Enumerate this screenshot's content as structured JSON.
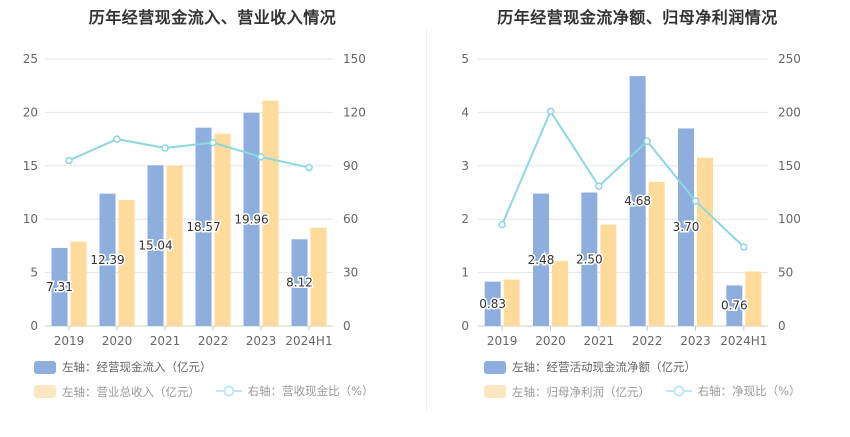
{
  "charts": [
    {
      "title": "历年经营现金流入、营业收入情况",
      "legend": {
        "bar1": "左轴：经营现金流入（亿元）",
        "bar2": "左轴：营业总收入（亿元）",
        "line": "右轴：营收现金比（%）"
      },
      "colors": {
        "bar1": "#8eaedd",
        "bar2": "#fedb9b",
        "line": "#8dd8e0",
        "grid": "#e6e6e6",
        "axisText": "#666666"
      }
    },
    {
      "title": "历年经营现金流净额、归母净利润情况",
      "legend": {
        "bar1": "左轴：经营活动现金流净额（亿元）",
        "bar2": "左轴：归母净利润（亿元）",
        "line": "右轴：净现比（%）"
      },
      "colors": {
        "bar1": "#8eaedd",
        "bar2": "#fedb9b",
        "line": "#8dd8e0",
        "grid": "#e6e6e6",
        "axisText": "#666666"
      }
    }
  ],
  "chart_data": [
    {
      "type": "bar",
      "title": "历年经营现金流入、营业收入情况",
      "categories": [
        "2019",
        "2020",
        "2021",
        "2022",
        "2023",
        "2024H1"
      ],
      "left_axis": {
        "ylim": [
          0,
          25
        ],
        "ticks": [
          0,
          5,
          10,
          15,
          20,
          25
        ]
      },
      "right_axis": {
        "ylim": [
          0,
          150
        ],
        "ticks": [
          0,
          30,
          60,
          90,
          120,
          150
        ]
      },
      "series": [
        {
          "name": "经营现金流入",
          "axis": "left",
          "kind": "bar",
          "values": [
            7.31,
            12.39,
            15.04,
            18.57,
            19.96,
            8.12
          ],
          "labels": [
            "7.31",
            "12.39",
            "15.04",
            "18.57",
            "19.96",
            "8.12"
          ]
        },
        {
          "name": "营业总收入",
          "axis": "left",
          "kind": "bar",
          "values": [
            7.9,
            11.8,
            15.0,
            18.0,
            21.1,
            9.2
          ]
        },
        {
          "name": "营收现金比",
          "axis": "right",
          "kind": "line",
          "values": [
            93,
            105,
            100,
            103,
            95,
            89
          ]
        }
      ]
    },
    {
      "type": "bar",
      "title": "历年经营现金流净额、归母净利润情况",
      "categories": [
        "2019",
        "2020",
        "2021",
        "2022",
        "2023",
        "2024H1"
      ],
      "left_axis": {
        "ylim": [
          0,
          5
        ],
        "ticks": [
          0,
          1,
          2,
          3,
          4,
          5
        ]
      },
      "right_axis": {
        "ylim": [
          0,
          250
        ],
        "ticks": [
          0,
          50,
          100,
          150,
          200,
          250
        ]
      },
      "series": [
        {
          "name": "经营活动现金流净额",
          "axis": "left",
          "kind": "bar",
          "values": [
            0.83,
            2.48,
            2.5,
            4.68,
            3.7,
            0.76
          ],
          "labels": [
            "0.83",
            "2.48",
            "2.50",
            "4.68",
            "3.70",
            "0.76"
          ]
        },
        {
          "name": "归母净利润",
          "axis": "left",
          "kind": "bar",
          "values": [
            0.87,
            1.22,
            1.9,
            2.7,
            3.15,
            1.02
          ]
        },
        {
          "name": "净现比",
          "axis": "right",
          "kind": "line",
          "values": [
            95,
            201,
            131,
            173,
            117,
            74
          ]
        }
      ]
    }
  ]
}
